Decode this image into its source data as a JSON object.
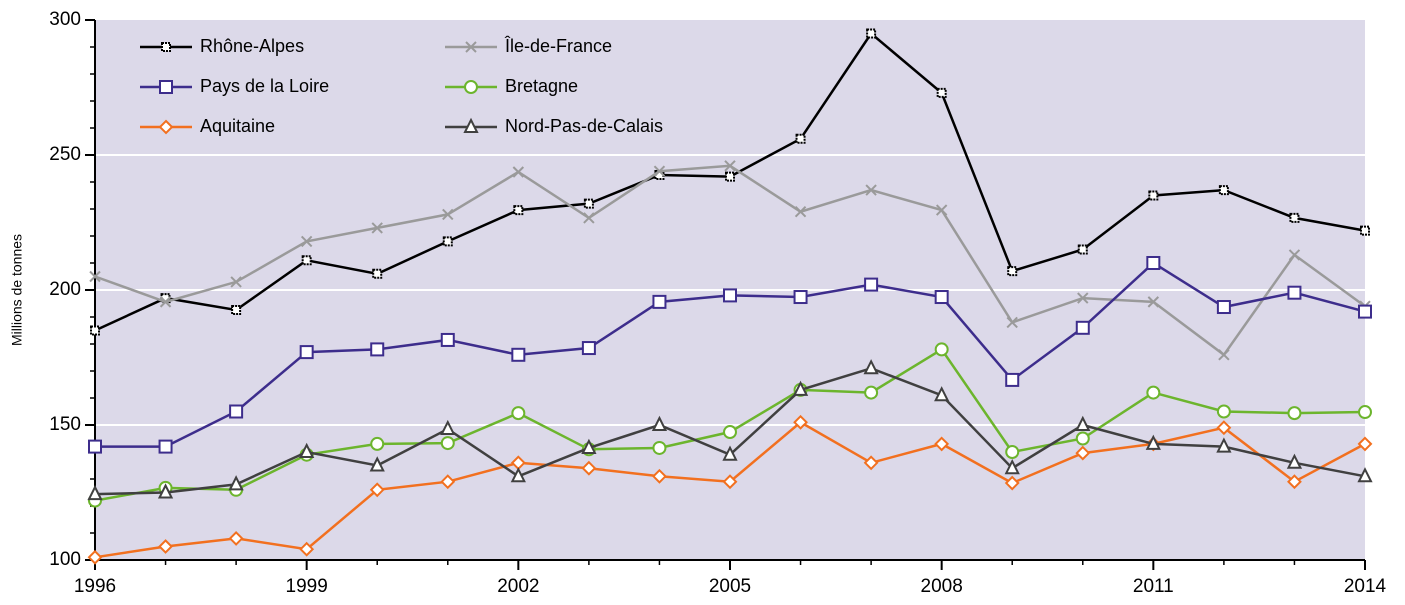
{
  "chart_data": {
    "type": "line",
    "y_label": "Millions de tonnes",
    "x": [
      1996,
      1997,
      1998,
      1999,
      2000,
      2001,
      2002,
      2003,
      2004,
      2005,
      2006,
      2007,
      2008,
      2009,
      2010,
      2011,
      2012,
      2013,
      2014
    ],
    "xlim": [
      1996,
      2014
    ],
    "xticks": [
      1996,
      1999,
      2002,
      2005,
      2008,
      2011,
      2014
    ],
    "ylim": [
      100,
      300
    ],
    "yticks": [
      100,
      150,
      200,
      250,
      300
    ],
    "grid": true,
    "legend": "upper-left",
    "background": "#dcd9e9",
    "series": [
      {
        "name": "Rhône-Alpes",
        "color": "#000000",
        "marker": "hash",
        "values": [
          185,
          197,
          192.6,
          211,
          206,
          218,
          229.6,
          232,
          242.6,
          242,
          256,
          295,
          273,
          207,
          215,
          235,
          237,
          226.7,
          222
        ]
      },
      {
        "name": "Île-de-France",
        "color": "#9a9a9a",
        "marker": "x",
        "values": [
          205,
          195.6,
          203,
          218,
          223,
          228,
          243.7,
          226.7,
          244,
          246,
          229,
          237,
          229.6,
          188,
          197,
          195.6,
          176,
          213,
          194
        ]
      },
      {
        "name": "Pays de la Loire",
        "color": "#3d2d8c",
        "marker": "square",
        "values": [
          142,
          142,
          155,
          177,
          178,
          181.5,
          176,
          178.5,
          195.6,
          198,
          197.4,
          202,
          197.4,
          166.7,
          186,
          210,
          193.7,
          199,
          192
        ]
      },
      {
        "name": "Bretagne",
        "color": "#6cb52d",
        "marker": "circle",
        "values": [
          122,
          126.7,
          126,
          139,
          143,
          143.3,
          154.4,
          141,
          141.5,
          147.4,
          163,
          162,
          178,
          140,
          145,
          162,
          155,
          154.4,
          154.8
        ]
      },
      {
        "name": "Aquitaine",
        "color": "#f2701f",
        "marker": "diamond",
        "values": [
          101,
          105,
          108,
          104,
          126,
          129,
          136,
          134,
          131,
          129,
          151,
          136,
          143,
          128.5,
          139.6,
          143,
          149,
          129,
          143
        ]
      },
      {
        "name": "Nord-Pas-de-Calais",
        "color": "#404040",
        "marker": "triangle",
        "values": [
          124.4,
          125,
          128,
          140,
          135,
          148.5,
          131,
          141.5,
          150,
          139,
          163,
          171,
          161,
          134,
          150,
          143,
          142,
          136,
          131
        ]
      }
    ]
  }
}
